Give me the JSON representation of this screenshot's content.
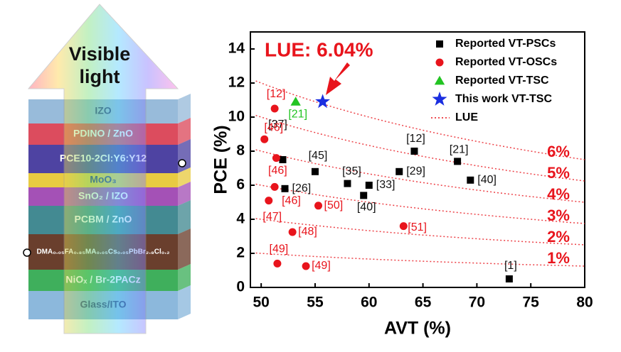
{
  "diagram": {
    "arrow_label": [
      "Visible",
      "light"
    ],
    "layers": [
      {
        "label": "IZO",
        "color": "#8db4d6"
      },
      {
        "label": "PDINO / ZnO",
        "color": "#d8384c"
      },
      {
        "label": "PCE10-2Cl:Y6:Y12",
        "color": "#3b2f98"
      },
      {
        "label": "MoO₃",
        "color": "#e6c52e"
      },
      {
        "label": "SnO₂ / IZO",
        "color": "#9a3eae"
      },
      {
        "label": "PCBM / ZnO",
        "color": "#2f7d86"
      },
      {
        "label": "DMA₀.₀₅FA₀.₈₅MA₀.₀₅Cs₀.₀₅PbBr₂.₈Cl₀.₂",
        "color": "#5a2a16"
      },
      {
        "label": "NiOₓ / Br-2PACz",
        "color": "#2aa64a"
      },
      {
        "label": "Glass/ITO",
        "color": "#7fb0d8"
      }
    ]
  },
  "chart_data": {
    "type": "scatter",
    "annotation": "LUE: 6.04%",
    "x_label": "AVT (%)",
    "y_label": "PCE (%)",
    "xlim": [
      49,
      80
    ],
    "xticks": [
      50,
      55,
      60,
      65,
      70,
      75,
      80
    ],
    "ylim": [
      0,
      15
    ],
    "yticks": [
      0,
      2,
      4,
      6,
      8,
      10,
      12,
      14
    ],
    "series": [
      {
        "name": "Reported VT-PSCs",
        "marker": "square",
        "color": "#000000",
        "label_color": "#111111",
        "x": [
          52,
          55,
          52.2,
          58,
          60,
          59.5,
          62.8,
          64.2,
          68.2,
          69.4,
          73
        ],
        "values": [
          7.5,
          6.8,
          5.8,
          6.1,
          6.0,
          5.4,
          6.8,
          8.0,
          7.4,
          6.3,
          0.5
        ],
        "point_labels": [
          "[37]",
          "[45]",
          "[26]",
          "[35]",
          "[33]",
          "[40]",
          "[29]",
          "[12]",
          "[21]",
          "[40]",
          "[1]"
        ]
      },
      {
        "name": "Reported VT-OSCs",
        "marker": "circle",
        "color": "#e8141c",
        "label_color": "#e8141c",
        "x": [
          51.25,
          50.3,
          51.4,
          51.25,
          50.7,
          55.3,
          52.9,
          63.2,
          51.5,
          54.15
        ],
        "values": [
          10.5,
          8.7,
          7.6,
          5.9,
          5.1,
          4.8,
          3.25,
          3.6,
          1.4,
          1.25
        ],
        "point_labels": [
          "[12]",
          "[46]",
          "[46]",
          "[46]",
          "[47]",
          "[50]",
          "[48]",
          "[51]",
          "[49]",
          "[49]"
        ]
      },
      {
        "name": "Reported VT-TSC",
        "marker": "triangle",
        "color": "#22c422",
        "label_color": "#22c422",
        "x": [
          53.2
        ],
        "values": [
          10.9
        ],
        "point_labels": [
          "[21]"
        ]
      },
      {
        "name": "This work VT-TSC",
        "marker": "star",
        "color": "#1a2ee0",
        "x": [
          55.7
        ],
        "values": [
          10.9
        ]
      }
    ],
    "lue": {
      "name": "LUE",
      "color": "#e8141c",
      "levels": [
        {
          "value": 6,
          "label": "6%"
        },
        {
          "value": 5,
          "label": "5%"
        },
        {
          "value": 4,
          "label": "4%"
        },
        {
          "value": 3,
          "label": "3%"
        },
        {
          "value": 2,
          "label": "2%"
        },
        {
          "value": 1,
          "label": "1%"
        }
      ]
    }
  }
}
